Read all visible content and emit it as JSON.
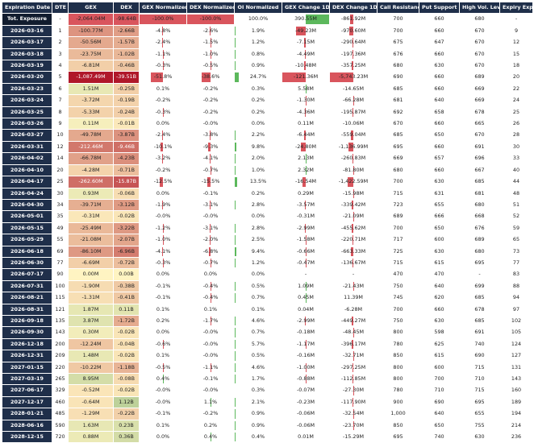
{
  "headers": {
    "expiration": "Expiration Date",
    "dte": "DTE",
    "gex": "GEX",
    "dex": "DEX",
    "gex_norm": "GEX Normalized",
    "dex_norm": "DEX Normalized",
    "oi_norm": "OI Normalized",
    "gex_chg": "GEX Change 1D",
    "dex_chg": "DEX Change 1D",
    "call_res": "Call Resistance",
    "put_sup": "Put Support",
    "high_vol": "High Vol. Level",
    "exp_move": "Expiry Exp. Move"
  },
  "colors": {
    "header_bg": "#1f2f4a",
    "neg_strong": "#b0182a",
    "pos_strong": "#1a7a36",
    "neutral": "#fff4c2",
    "bar_neg": "#d9555d",
    "bar_pos": "#5cb85c"
  },
  "chart_data": {
    "type": "table",
    "columns": [
      "Expiration Date",
      "DTE",
      "GEX",
      "DEX",
      "GEX Normalized",
      "DEX Normalized",
      "OI Normalized",
      "GEX Change 1D",
      "DEX Change 1D",
      "Call Resistance",
      "Put Support",
      "High Vol. Level",
      "Expiry Exp. Move"
    ],
    "rows": [
      {
        "date": "Tot. Exposure",
        "dte": "-",
        "gex": "-2,064.04M",
        "gv": -2064.04,
        "dex": "-98.64B",
        "dv": -98.64,
        "gn": "-100.0%",
        "gnv": -100.0,
        "dn": "-100.0%",
        "dnv": -100.0,
        "oi": "100.0%",
        "oiv": 100.0,
        "gc": "390.55M",
        "gcv": 390.55,
        "dc": "-861.92M",
        "dcv": -861.92,
        "cr": "700",
        "ps": "660",
        "hv": "680",
        "em": "-"
      },
      {
        "date": "2026-03-16",
        "dte": "1",
        "gex": "-100.77M",
        "gv": -100.77,
        "dex": "-2.66B",
        "dv": -2.66,
        "gn": "-4.8%",
        "gnv": -4.8,
        "dn": "-2.6%",
        "dnv": -2.6,
        "oi": "1.9%",
        "oiv": 1.9,
        "gc": "-49.23M",
        "gcv": -49.23,
        "dc": "-970.60M",
        "dcv": -970.6,
        "cr": "700",
        "ps": "660",
        "hv": "670",
        "em": "9"
      },
      {
        "date": "2026-03-17",
        "dte": "2",
        "gex": "-50.56M",
        "gv": -50.56,
        "dex": "-1.57B",
        "dv": -1.57,
        "gn": "-2.4%",
        "gnv": -2.4,
        "dn": "-1.5%",
        "dnv": -1.5,
        "oi": "1.2%",
        "oiv": 1.2,
        "gc": "-7.15M",
        "gcv": -7.15,
        "dc": "-290.64M",
        "dcv": -290.64,
        "cr": "675",
        "ps": "647",
        "hv": "670",
        "em": "12"
      },
      {
        "date": "2026-03-18",
        "dte": "3",
        "gex": "-23.75M",
        "gv": -23.75,
        "dex": "-1.02B",
        "dv": -1.02,
        "gn": "-1.1%",
        "gnv": -1.1,
        "dn": "-1.0%",
        "dnv": -1.0,
        "oi": "0.8%",
        "oiv": 0.8,
        "gc": "-4.49M",
        "gcv": -4.49,
        "dc": "-197.36M",
        "dcv": -197.36,
        "cr": "676",
        "ps": "660",
        "hv": "670",
        "em": "15"
      },
      {
        "date": "2026-03-19",
        "dte": "4",
        "gex": "-6.81M",
        "gv": -6.81,
        "dex": "-0.46B",
        "dv": -0.46,
        "gn": "-0.3%",
        "gnv": -0.3,
        "dn": "-0.5%",
        "dnv": -0.5,
        "oi": "0.9%",
        "oiv": 0.9,
        "gc": "-10.48M",
        "gcv": -10.48,
        "dc": "-357.25M",
        "dcv": -357.25,
        "cr": "680",
        "ps": "630",
        "hv": "670",
        "em": "18"
      },
      {
        "date": "2026-03-20",
        "dte": "5",
        "gex": "-1,087.49M",
        "gv": -1087.49,
        "dex": "-39.51B",
        "dv": -39.51,
        "gn": "-51.8%",
        "gnv": -51.8,
        "dn": "-38.6%",
        "dnv": -38.6,
        "oi": "24.7%",
        "oiv": 24.7,
        "gc": "-121.36M",
        "gcv": -121.36,
        "dc": "-5,743.23M",
        "dcv": -5743.23,
        "cr": "690",
        "ps": "660",
        "hv": "689",
        "em": "20"
      },
      {
        "date": "2026-03-23",
        "dte": "6",
        "gex": "1.51M",
        "gv": 1.51,
        "dex": "-0.25B",
        "dv": -0.25,
        "gn": "0.1%",
        "gnv": 0.1,
        "dn": "-0.2%",
        "dnv": -0.2,
        "oi": "0.3%",
        "oiv": 0.3,
        "gc": "5.58M",
        "gcv": 5.58,
        "dc": "-14.65M",
        "dcv": -14.65,
        "cr": "685",
        "ps": "660",
        "hv": "669",
        "em": "22"
      },
      {
        "date": "2026-03-24",
        "dte": "7",
        "gex": "-3.72M",
        "gv": -3.72,
        "dex": "-0.19B",
        "dv": -0.19,
        "gn": "-0.2%",
        "gnv": -0.2,
        "dn": "-0.2%",
        "dnv": -0.2,
        "oi": "0.2%",
        "oiv": 0.2,
        "gc": "-1.30M",
        "gcv": -1.3,
        "dc": "-66.28M",
        "dcv": -66.28,
        "cr": "681",
        "ps": "640",
        "hv": "669",
        "em": "24"
      },
      {
        "date": "2026-03-25",
        "dte": "8",
        "gex": "-5.33M",
        "gv": -5.33,
        "dex": "-0.24B",
        "dv": -0.24,
        "gn": "-0.3%",
        "gnv": -0.3,
        "dn": "-0.2%",
        "dnv": -0.2,
        "oi": "0.2%",
        "oiv": 0.2,
        "gc": "-4.36M",
        "gcv": -4.36,
        "dc": "-195.87M",
        "dcv": -195.87,
        "cr": "692",
        "ps": "658",
        "hv": "678",
        "em": "25"
      },
      {
        "date": "2026-03-26",
        "dte": "9",
        "gex": "0.11M",
        "gv": 0.11,
        "dex": "-0.01B",
        "dv": -0.01,
        "gn": "0.0%",
        "gnv": 0.0,
        "dn": "-0.0%",
        "dnv": 0.0,
        "oi": "0.0%",
        "oiv": 0.0,
        "gc": "0.11M",
        "gcv": 0.11,
        "dc": "-10.06M",
        "dcv": -10.06,
        "cr": "670",
        "ps": "660",
        "hv": "665",
        "em": "26"
      },
      {
        "date": "2026-03-27",
        "dte": "10",
        "gex": "-49.78M",
        "gv": -49.78,
        "dex": "-3.87B",
        "dv": -3.87,
        "gn": "-2.4%",
        "gnv": -2.4,
        "dn": "-3.8%",
        "dnv": -3.8,
        "oi": "2.2%",
        "oiv": 2.2,
        "gc": "-6.44M",
        "gcv": -6.44,
        "dc": "-559.04M",
        "dcv": -559.04,
        "cr": "685",
        "ps": "650",
        "hv": "670",
        "em": "28"
      },
      {
        "date": "2026-03-31",
        "dte": "12",
        "gex": "-212.46M",
        "gv": -212.46,
        "dex": "-9.46B",
        "dv": -9.46,
        "gn": "-10.1%",
        "gnv": -10.1,
        "dn": "-9.3%",
        "dnv": -9.3,
        "oi": "9.8%",
        "oiv": 9.8,
        "gc": "-24.80M",
        "gcv": -24.8,
        "dc": "-1,136.99M",
        "dcv": -1136.99,
        "cr": "695",
        "ps": "660",
        "hv": "691",
        "em": "30"
      },
      {
        "date": "2026-04-02",
        "dte": "14",
        "gex": "-66.78M",
        "gv": -66.78,
        "dex": "-4.23B",
        "dv": -4.23,
        "gn": "-3.2%",
        "gnv": -3.2,
        "dn": "-4.1%",
        "dnv": -4.1,
        "oi": "2.0%",
        "oiv": 2.0,
        "gc": "2.13M",
        "gcv": 2.13,
        "dc": "-260.83M",
        "dcv": -260.83,
        "cr": "669",
        "ps": "657",
        "hv": "696",
        "em": "33"
      },
      {
        "date": "2026-04-10",
        "dte": "20",
        "gex": "-4.28M",
        "gv": -4.28,
        "dex": "-0.71B",
        "dv": -0.71,
        "gn": "-0.2%",
        "gnv": -0.2,
        "dn": "-0.7%",
        "dnv": -0.7,
        "oi": "1.0%",
        "oiv": 1.0,
        "gc": "2.32M",
        "gcv": 2.32,
        "dc": "-81.80M",
        "dcv": -81.8,
        "cr": "680",
        "ps": "660",
        "hv": "667",
        "em": "40"
      },
      {
        "date": "2026-04-17",
        "dte": "25",
        "gex": "-262.60M",
        "gv": -262.6,
        "dex": "-15.87B",
        "dv": -15.87,
        "gn": "-12.5%",
        "gnv": -12.5,
        "dn": "-15.5%",
        "dnv": -15.5,
        "oi": "13.5%",
        "oiv": 13.5,
        "gc": "-16.54M",
        "gcv": -16.54,
        "dc": "-1,422.59M",
        "dcv": -1422.59,
        "cr": "700",
        "ps": "630",
        "hv": "685",
        "em": "44"
      },
      {
        "date": "2026-04-24",
        "dte": "30",
        "gex": "0.93M",
        "gv": 0.93,
        "dex": "-0.06B",
        "dv": -0.06,
        "gn": "0.0%",
        "gnv": 0.0,
        "dn": "-0.1%",
        "dnv": -0.1,
        "oi": "0.2%",
        "oiv": 0.2,
        "gc": "0.29M",
        "gcv": 0.29,
        "dc": "-15.98M",
        "dcv": -15.98,
        "cr": "715",
        "ps": "631",
        "hv": "681",
        "em": "48"
      },
      {
        "date": "2026-04-30",
        "dte": "34",
        "gex": "-39.71M",
        "gv": -39.71,
        "dex": "-3.12B",
        "dv": -3.12,
        "gn": "-1.9%",
        "gnv": -1.9,
        "dn": "-3.1%",
        "dnv": -3.1,
        "oi": "2.8%",
        "oiv": 2.8,
        "gc": "-3.57M",
        "gcv": -3.57,
        "dc": "-339.42M",
        "dcv": -339.42,
        "cr": "723",
        "ps": "655",
        "hv": "680",
        "em": "51"
      },
      {
        "date": "2026-05-01",
        "dte": "35",
        "gex": "-0.31M",
        "gv": -0.31,
        "dex": "-0.02B",
        "dv": -0.02,
        "gn": "-0.0%",
        "gnv": 0.0,
        "dn": "-0.0%",
        "dnv": 0.0,
        "oi": "0.0%",
        "oiv": 0.0,
        "gc": "-0.31M",
        "gcv": -0.31,
        "dc": "-21.09M",
        "dcv": -21.09,
        "cr": "689",
        "ps": "666",
        "hv": "668",
        "em": "52"
      },
      {
        "date": "2026-05-15",
        "dte": "49",
        "gex": "-25.49M",
        "gv": -25.49,
        "dex": "-3.22B",
        "dv": -3.22,
        "gn": "-1.2%",
        "gnv": -1.2,
        "dn": "-3.1%",
        "dnv": -3.1,
        "oi": "2.8%",
        "oiv": 2.8,
        "gc": "-2.99M",
        "gcv": -2.99,
        "dc": "-455.62M",
        "dcv": -455.62,
        "cr": "700",
        "ps": "650",
        "hv": "676",
        "em": "59"
      },
      {
        "date": "2026-05-29",
        "dte": "55",
        "gex": "-21.08M",
        "gv": -21.08,
        "dex": "-2.07B",
        "dv": -2.07,
        "gn": "-1.0%",
        "gnv": -1.0,
        "dn": "-2.0%",
        "dnv": -2.0,
        "oi": "2.5%",
        "oiv": 2.5,
        "gc": "-1.58M",
        "gcv": -1.58,
        "dc": "-220.71M",
        "dcv": -220.71,
        "cr": "717",
        "ps": "600",
        "hv": "689",
        "em": "65"
      },
      {
        "date": "2026-06-18",
        "dte": "69",
        "gex": "-86.10M",
        "gv": -86.1,
        "dex": "-6.96B",
        "dv": -6.96,
        "gn": "-4.1%",
        "gnv": -4.1,
        "dn": "-6.8%",
        "dnv": -6.8,
        "oi": "9.4%",
        "oiv": 9.4,
        "gc": "-0.66M",
        "gcv": -0.66,
        "dc": "-663.33M",
        "dcv": -663.33,
        "cr": "725",
        "ps": "630",
        "hv": "680",
        "em": "73"
      },
      {
        "date": "2026-06-30",
        "dte": "77",
        "gex": "-6.69M",
        "gv": -6.69,
        "dex": "-0.72B",
        "dv": -0.72,
        "gn": "-0.3%",
        "gnv": -0.3,
        "dn": "-0.7%",
        "dnv": -0.7,
        "oi": "1.2%",
        "oiv": 1.2,
        "gc": "-0.47M",
        "gcv": -0.47,
        "dc": "-136.67M",
        "dcv": -136.67,
        "cr": "715",
        "ps": "615",
        "hv": "695",
        "em": "77"
      },
      {
        "date": "2026-07-17",
        "dte": "90",
        "gex": "0.00M",
        "gv": 0.0,
        "dex": "0.00B",
        "dv": 0.0,
        "gn": "0.0%",
        "gnv": 0.0,
        "dn": "0.0%",
        "dnv": 0.0,
        "oi": "0.0%",
        "oiv": 0.0,
        "gc": "-",
        "gcv": 0,
        "dc": "-",
        "dcv": 0,
        "cr": "470",
        "ps": "470",
        "hv": "-",
        "em": "83"
      },
      {
        "date": "2026-07-31",
        "dte": "100",
        "gex": "-1.90M",
        "gv": -1.9,
        "dex": "-0.38B",
        "dv": -0.38,
        "gn": "-0.1%",
        "gnv": -0.1,
        "dn": "-0.4%",
        "dnv": -0.4,
        "oi": "0.5%",
        "oiv": 0.5,
        "gc": "1.09M",
        "gcv": 1.09,
        "dc": "-21.43M",
        "dcv": -21.43,
        "cr": "750",
        "ps": "640",
        "hv": "699",
        "em": "88"
      },
      {
        "date": "2026-08-21",
        "dte": "115",
        "gex": "-1.31M",
        "gv": -1.31,
        "dex": "-0.41B",
        "dv": -0.41,
        "gn": "-0.1%",
        "gnv": -0.1,
        "dn": "-0.4%",
        "dnv": -0.4,
        "oi": "0.7%",
        "oiv": 0.7,
        "gc": "0.45M",
        "gcv": 0.45,
        "dc": "11.39M",
        "dcv": 11.39,
        "cr": "745",
        "ps": "620",
        "hv": "685",
        "em": "94"
      },
      {
        "date": "2026-08-31",
        "dte": "121",
        "gex": "1.87M",
        "gv": 1.87,
        "dex": "0.11B",
        "dv": 0.11,
        "gn": "0.1%",
        "gnv": 0.1,
        "dn": "0.1%",
        "dnv": 0.1,
        "oi": "0.1%",
        "oiv": 0.1,
        "gc": "0.04M",
        "gcv": 0.04,
        "dc": "-6.28M",
        "dcv": -6.28,
        "cr": "700",
        "ps": "660",
        "hv": "678",
        "em": "97"
      },
      {
        "date": "2026-09-18",
        "dte": "135",
        "gex": "3.87M",
        "gv": 3.87,
        "dex": "-1.72B",
        "dv": -1.72,
        "gn": "0.2%",
        "gnv": 0.2,
        "dn": "-1.7%",
        "dnv": -1.7,
        "oi": "4.6%",
        "oiv": 4.6,
        "gc": "-2.99M",
        "gcv": -2.99,
        "dc": "-449.27M",
        "dcv": -449.27,
        "cr": "750",
        "ps": "630",
        "hv": "685",
        "em": "102"
      },
      {
        "date": "2026-09-30",
        "dte": "143",
        "gex": "0.30M",
        "gv": 0.3,
        "dex": "-0.02B",
        "dv": -0.02,
        "gn": "0.0%",
        "gnv": 0.0,
        "dn": "-0.0%",
        "dnv": 0.0,
        "oi": "0.7%",
        "oiv": 0.7,
        "gc": "-0.18M",
        "gcv": -0.18,
        "dc": "-48.45M",
        "dcv": -48.45,
        "cr": "800",
        "ps": "598",
        "hv": "691",
        "em": "105"
      },
      {
        "date": "2026-12-18",
        "dte": "200",
        "gex": "-12.24M",
        "gv": -12.24,
        "dex": "-0.04B",
        "dv": -0.04,
        "gn": "-0.6%",
        "gnv": -0.6,
        "dn": "-0.0%",
        "dnv": 0.0,
        "oi": "5.7%",
        "oiv": 5.7,
        "gc": "-1.17M",
        "gcv": -1.17,
        "dc": "-396.17M",
        "dcv": -396.17,
        "cr": "780",
        "ps": "625",
        "hv": "740",
        "em": "124"
      },
      {
        "date": "2026-12-31",
        "dte": "209",
        "gex": "1.48M",
        "gv": 1.48,
        "dex": "-0.02B",
        "dv": -0.02,
        "gn": "0.1%",
        "gnv": 0.1,
        "dn": "-0.0%",
        "dnv": 0.0,
        "oi": "0.5%",
        "oiv": 0.5,
        "gc": "-0.16M",
        "gcv": -0.16,
        "dc": "-32.71M",
        "dcv": -32.71,
        "cr": "850",
        "ps": "615",
        "hv": "690",
        "em": "127"
      },
      {
        "date": "2027-01-15",
        "dte": "220",
        "gex": "-10.22M",
        "gv": -10.22,
        "dex": "-1.18B",
        "dv": -1.18,
        "gn": "-0.5%",
        "gnv": -0.5,
        "dn": "-1.1%",
        "dnv": -1.1,
        "oi": "4.6%",
        "oiv": 4.6,
        "gc": "-1.00M",
        "gcv": -1.0,
        "dc": "-297.25M",
        "dcv": -297.25,
        "cr": "800",
        "ps": "600",
        "hv": "715",
        "em": "131"
      },
      {
        "date": "2027-03-19",
        "dte": "265",
        "gex": "8.95M",
        "gv": 8.95,
        "dex": "-0.08B",
        "dv": -0.08,
        "gn": "0.4%",
        "gnv": 0.4,
        "dn": "-0.1%",
        "dnv": -0.1,
        "oi": "1.7%",
        "oiv": 1.7,
        "gc": "-0.88M",
        "gcv": -0.88,
        "dc": "-112.85M",
        "dcv": -112.85,
        "cr": "800",
        "ps": "700",
        "hv": "710",
        "em": "143"
      },
      {
        "date": "2027-06-17",
        "dte": "329",
        "gex": "-0.52M",
        "gv": -0.52,
        "dex": "-0.02B",
        "dv": -0.02,
        "gn": "-0.0%",
        "gnv": 0.0,
        "dn": "-0.0%",
        "dnv": 0.0,
        "oi": "0.3%",
        "oiv": 0.3,
        "gc": "-0.07M",
        "gcv": -0.07,
        "dc": "-27.30M",
        "dcv": -27.3,
        "cr": "780",
        "ps": "710",
        "hv": "715",
        "em": "160"
      },
      {
        "date": "2027-12-17",
        "dte": "460",
        "gex": "-0.64M",
        "gv": -0.64,
        "dex": "1.12B",
        "dv": 1.12,
        "gn": "-0.0%",
        "gnv": 0.0,
        "dn": "1.1%",
        "dnv": 1.1,
        "oi": "2.1%",
        "oiv": 2.1,
        "gc": "-0.23M",
        "gcv": -0.23,
        "dc": "-117.90M",
        "dcv": -117.9,
        "cr": "900",
        "ps": "690",
        "hv": "695",
        "em": "189"
      },
      {
        "date": "2028-01-21",
        "dte": "485",
        "gex": "-1.29M",
        "gv": -1.29,
        "dex": "-0.22B",
        "dv": -0.22,
        "gn": "-0.1%",
        "gnv": -0.1,
        "dn": "-0.2%",
        "dnv": -0.2,
        "oi": "0.9%",
        "oiv": 0.9,
        "gc": "-0.06M",
        "gcv": -0.06,
        "dc": "-32.54M",
        "dcv": -32.54,
        "cr": "1,000",
        "ps": "640",
        "hv": "655",
        "em": "194"
      },
      {
        "date": "2028-06-16",
        "dte": "590",
        "gex": "1.63M",
        "gv": 1.63,
        "dex": "0.23B",
        "dv": 0.23,
        "gn": "0.1%",
        "gnv": 0.1,
        "dn": "0.2%",
        "dnv": 0.2,
        "oi": "0.9%",
        "oiv": 0.9,
        "gc": "-0.06M",
        "gcv": -0.06,
        "dc": "-23.70M",
        "dcv": -23.7,
        "cr": "850",
        "ps": "650",
        "hv": "755",
        "em": "214"
      },
      {
        "date": "2028-12-15",
        "dte": "720",
        "gex": "0.88M",
        "gv": 0.88,
        "dex": "0.36B",
        "dv": 0.36,
        "gn": "0.0%",
        "gnv": 0.0,
        "dn": "0.4%",
        "dnv": 0.4,
        "oi": "0.4%",
        "oiv": 0.4,
        "gc": "0.01M",
        "gcv": 0.01,
        "dc": "-15.29M",
        "dcv": -15.29,
        "cr": "695",
        "ps": "740",
        "hv": "630",
        "em": "236"
      }
    ]
  }
}
